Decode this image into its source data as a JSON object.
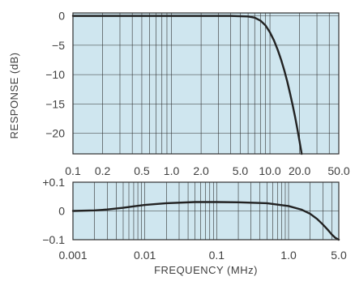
{
  "chart_data": [
    {
      "type": "line",
      "panel": "top",
      "xscale": "log",
      "x_ticks": [
        0.1,
        0.2,
        0.5,
        1.0,
        2.0,
        5.0,
        10.0,
        20.0,
        50.0
      ],
      "x_tick_labels": [
        "0.1",
        "0.2",
        "0.5",
        "1.0",
        "2.0",
        "5.0",
        "10.0",
        "20.0",
        "50.0"
      ],
      "xlim": [
        0.1,
        50.0
      ],
      "y_ticks": [
        0,
        -5,
        -10,
        -15,
        -20
      ],
      "y_tick_labels": [
        "0",
        "−5",
        "−10",
        "−15",
        "−20"
      ],
      "ylim": [
        -23.5,
        0.5
      ],
      "ylabel": "RESPONSE (dB)",
      "grid": true,
      "background": "#cfe6ef",
      "line_color": "#222222",
      "series": [
        {
          "x": [
            0.1,
            0.5,
            1.0,
            2.0,
            4.0,
            6.0,
            7.0,
            8.0,
            9.0,
            10.0,
            11.0,
            12.0,
            13.0,
            14.0,
            15.0,
            16.0,
            17.0,
            18.0,
            19.0,
            20.0,
            21.0
          ],
          "y": [
            0,
            0,
            0,
            0,
            0,
            -0.1,
            -0.3,
            -0.8,
            -1.6,
            -2.8,
            -4.2,
            -5.8,
            -7.5,
            -9.3,
            -11.2,
            -13.2,
            -15.2,
            -17.2,
            -19.3,
            -21.4,
            -23.5
          ]
        }
      ]
    },
    {
      "type": "line",
      "panel": "bottom",
      "xscale": "log",
      "x_ticks": [
        0.001,
        0.01,
        0.1,
        1.0,
        5.0
      ],
      "x_tick_labels": [
        "0.001",
        "0.01",
        "0.1",
        "1.0",
        "5.0"
      ],
      "xlim": [
        0.001,
        5.0
      ],
      "y_ticks": [
        0.1,
        0,
        -0.1
      ],
      "y_tick_labels": [
        "+0.1",
        "0",
        "−0.1"
      ],
      "ylim": [
        -0.1,
        0.1
      ],
      "xlabel": "FREQUENCY (MHz)",
      "grid": true,
      "background": "#cfe6ef",
      "line_color": "#222222",
      "series": [
        {
          "x": [
            0.001,
            0.002,
            0.003,
            0.005,
            0.007,
            0.01,
            0.02,
            0.05,
            0.1,
            0.2,
            0.5,
            1.0,
            1.5,
            2.0,
            2.5,
            3.0,
            3.5,
            4.0,
            4.5,
            5.0
          ],
          "y": [
            0,
            0.002,
            0.005,
            0.011,
            0.016,
            0.021,
            0.027,
            0.031,
            0.031,
            0.03,
            0.027,
            0.017,
            0.005,
            -0.01,
            -0.028,
            -0.047,
            -0.065,
            -0.082,
            -0.094,
            -0.1
          ]
        }
      ]
    }
  ]
}
